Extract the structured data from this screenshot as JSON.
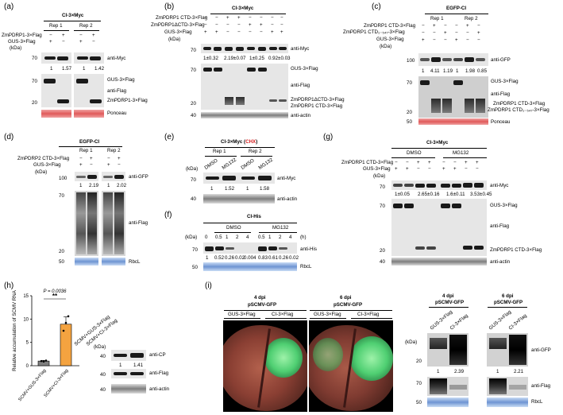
{
  "panels": {
    "a": {
      "letter": "(a)",
      "header": "CI-3×Myc",
      "rep1": "Rep 1",
      "rep2": "Rep 2",
      "row1": "ZmPDRP1-3×Flag",
      "row2": "GUS-3×Flag",
      "kda": "(kDa)",
      "signs1": [
        "−",
        "+",
        "−",
        "+"
      ],
      "signs2": [
        "+",
        "−",
        "+",
        "−"
      ],
      "mw": [
        "70",
        "70",
        "20"
      ],
      "myc_vals": [
        "1",
        "1.57",
        "1",
        "1.42"
      ],
      "labels": [
        "anti-Myc",
        "GUS-3×Flag",
        "anti-Flag",
        "ZmPDRP1-3×Flag",
        "Ponceau"
      ]
    },
    "b": {
      "letter": "(b)",
      "header": "CI-3×Myc",
      "row1": "ZmPDRP1 CTD-3×Flag",
      "row2": "ZmPDRP1ΔCTD-3×Flag",
      "row3": "GUS-3×Flag",
      "kda": "(kDa)",
      "signs1": [
        "−",
        "−",
        "+",
        "+",
        "−",
        "−",
        "−",
        "−"
      ],
      "signs2": [
        "−",
        "−",
        "−",
        "−",
        "+",
        "+",
        "−",
        "−"
      ],
      "signs3": [
        "+",
        "+",
        "−",
        "−",
        "−",
        "−",
        "+",
        "+"
      ],
      "mw": [
        "70",
        "70",
        "20",
        "40"
      ],
      "myc_vals": [
        "1±0.32",
        "2.19±0.07",
        "1±0.25",
        "0.92±0.03"
      ],
      "labels": [
        "anti-Myc",
        "GUS-3×Flag",
        "anti-Flag",
        "ZmPDRP1ΔCTD-3×Flag",
        "ZmPDRP1 CTD-3×Flag",
        "anti-actin"
      ]
    },
    "c": {
      "letter": "(c)",
      "header": "EGFP-CI",
      "rep1": "Rep 1",
      "rep2": "Rep 2",
      "row1": "ZmPDRP1 CTD-3×Flag",
      "row2": "ZmPDRP1 CTD₁₋₅₄₇-3×Flag",
      "row3": "GUS-3×Flag",
      "kda": "(kDa)",
      "signs1": [
        "−",
        "+",
        "−",
        "−",
        "+",
        "−"
      ],
      "signs2": [
        "−",
        "−",
        "+",
        "−",
        "−",
        "+"
      ],
      "signs3": [
        "+",
        "−",
        "−",
        "+",
        "−",
        "−"
      ],
      "mw": [
        "100",
        "70",
        "20",
        "50"
      ],
      "gfp_vals": [
        "1",
        "4.11",
        "1.19",
        "1",
        "1.98",
        "0.85"
      ],
      "labels": [
        "anti-GFP",
        "GUS-3×Flag",
        "anti-Flag",
        "ZmPDRP1 CTD-3×Flag",
        "ZmPDRP1 CTD₁₋₅₄₇-3×Flag",
        "Ponceau"
      ]
    },
    "d": {
      "letter": "(d)",
      "header": "EGFP-CI",
      "rep1": "Rep 1",
      "rep2": "Rep 2",
      "row1": "ZmPDRP2 CTD-3×Flag",
      "row2": "GUS-3×Flag",
      "kda": "(kDa)",
      "signs1": [
        "−",
        "+",
        "−",
        "+"
      ],
      "signs2": [
        "+",
        "−",
        "+",
        "−"
      ],
      "mw": [
        "100",
        "70",
        "20",
        "50"
      ],
      "gfp_vals": [
        "1",
        "2.19",
        "1",
        "2.02"
      ],
      "labels": [
        "anti-GFP",
        "anti-Flag",
        "RbcL"
      ]
    },
    "e": {
      "letter": "(e)",
      "header_a": "CI-3×Myc (",
      "header_b": "CHX",
      "header_c": ")",
      "rep1": "Rep 1",
      "rep2": "Rep 2",
      "kda": "(kDa)",
      "lanes": [
        "DMSO",
        "MG132",
        "DMSO",
        "MG132"
      ],
      "mw": [
        "70",
        "40"
      ],
      "myc_vals": [
        "1",
        "1.52",
        "1",
        "1.58"
      ],
      "labels": [
        "anti-Myc",
        "anti-actin"
      ]
    },
    "f": {
      "letter": "(f)",
      "header": "CI-His",
      "dmso": "DMSO",
      "mg": "MG132",
      "kda": "(kDa)",
      "unit": "(h)",
      "times": [
        "0",
        "0.5",
        "1",
        "2",
        "4",
        "0.5",
        "1",
        "2",
        "4"
      ],
      "mw": [
        "70",
        "50"
      ],
      "vals": [
        "1",
        "0.52",
        "0.26",
        "0.02",
        "0.004",
        "0.83",
        "0.61",
        "0.26",
        "0.02"
      ],
      "labels": [
        "anti-His",
        "RbcL"
      ]
    },
    "g": {
      "letter": "(g)",
      "header": "CI-3×Myc",
      "dmso": "DMSO",
      "mg": "MG132",
      "row1": "ZmPDRP1 CTD-3×Flag",
      "row2": "GUS-3×Flag",
      "kda": "(kDa)",
      "signs1": [
        "−",
        "−",
        "+",
        "+",
        "−",
        "−",
        "+",
        "+"
      ],
      "signs2": [
        "+",
        "+",
        "−",
        "−",
        "+",
        "+",
        "−",
        "−"
      ],
      "mw": [
        "70",
        "70",
        "20",
        "40"
      ],
      "myc_vals": [
        "1±0.05",
        "2.65±0.16",
        "1.6±0.11",
        "3.53±0.45"
      ],
      "labels": [
        "anti-Myc",
        "GUS-3×Flag",
        "anti-Flag",
        "ZmPDRP1 CTD-3×Flag",
        "anti-actin"
      ]
    },
    "h": {
      "letter": "(h)",
      "ylabel": "Relative accumulation of SCMV RNA",
      "pval": "P = 0.0036",
      "sig": "**",
      "yticks": [
        "0",
        "5",
        "10",
        "15"
      ],
      "xcats": [
        "SCMV+GUS-3×Flag",
        "SCMV+CI-3×Flag"
      ],
      "blot_lanes": [
        "SCMV+GUS-3×Flag",
        "SCMV+CI-3×Flag"
      ],
      "kda": "(kDa)",
      "mw": [
        "40",
        "40",
        "40"
      ],
      "cp_vals": [
        "1",
        "1.41"
      ],
      "labels": [
        "anti-CP",
        "anti-Flag",
        "anti-actin"
      ]
    },
    "i": {
      "letter": "(i)",
      "dpi4": "4 dpi",
      "dpi6": "6 dpi",
      "virus": "pSCMV-GFP",
      "gus": "GUS-3×Flag",
      "ci": "CI-3×Flag",
      "kda": "(kDa)",
      "mw": [
        "20",
        "70",
        "50"
      ],
      "gfp_vals4": [
        "1",
        "2.39"
      ],
      "gfp_vals6": [
        "1",
        "2.21"
      ],
      "labels": [
        "anti-GFP",
        "anti-Flag",
        "RbcL"
      ]
    }
  },
  "chart_data": {
    "type": "bar",
    "categories": [
      "SCMV+GUS-3×Flag",
      "SCMV+CI-3×Flag"
    ],
    "values": [
      1.0,
      8.9
    ],
    "errors": [
      0.15,
      1.6
    ],
    "points": [
      [
        1.0,
        0.9,
        1.1
      ],
      [
        7.5,
        9.2,
        10.6
      ]
    ],
    "ylabel": "Relative accumulation of SCMV RNA",
    "ylim": [
      0,
      15
    ],
    "colors": [
      "#7f7f7f",
      "#f4a340"
    ],
    "annotation": "P = 0.0036 **"
  }
}
